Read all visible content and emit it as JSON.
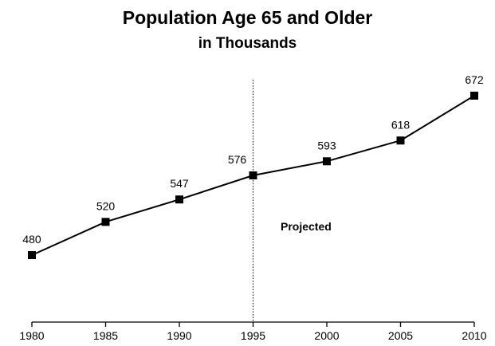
{
  "chart_data": {
    "type": "line",
    "title": "Population Age 65 and Older",
    "subtitle": "in Thousands",
    "x": [
      1980,
      1985,
      1990,
      1995,
      2000,
      2005,
      2010
    ],
    "x_tick_labels": [
      "1980",
      "1985",
      "1990",
      "1995",
      "2000",
      "2005",
      "2010"
    ],
    "series": [
      {
        "values": [
          480,
          520,
          547,
          576,
          593,
          618,
          672
        ]
      }
    ],
    "xlim": [
      1980,
      2010
    ],
    "ylim": [
      420,
      700
    ],
    "projection_start": 1995,
    "annotation": "Projected",
    "marker": "square",
    "line_color": "#000000",
    "grid": false,
    "legend": "none"
  }
}
